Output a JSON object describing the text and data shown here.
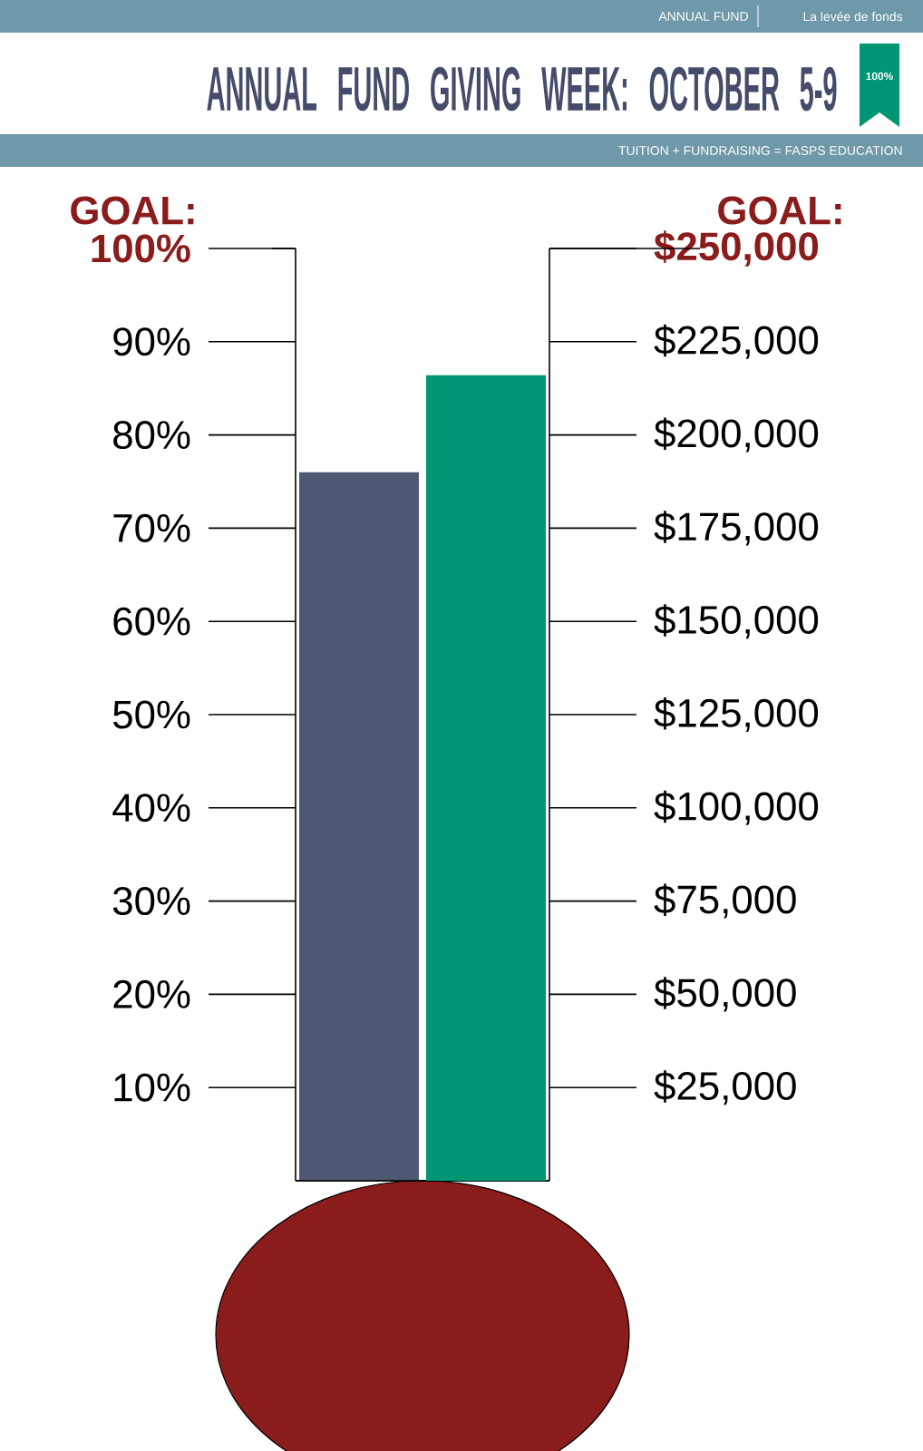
{
  "chart_data": {
    "type": "bar",
    "title": "ANNUAL FUND GIVING WEEK: OCTOBER 5-9",
    "subtitle": "TUITION + FUNDRAISING = FASPS EDUCATION",
    "annotations": [
      "ANNUAL FUND",
      "La levée de fonds",
      "100%"
    ],
    "categories": [
      null,
      null
    ],
    "series": [
      {
        "color": "#4f5873",
        "values": [
          76,
          null
        ]
      },
      {
        "color": "#009674",
        "values": [
          null,
          216000
        ],
        "axis": "y2"
      }
    ],
    "ylim": [
      0,
      100
    ],
    "yticks": [
      {
        "value": 10,
        "label": "10%"
      },
      {
        "value": 20,
        "label": "20%"
      },
      {
        "value": 30,
        "label": "30%"
      },
      {
        "value": 40,
        "label": "40%"
      },
      {
        "value": 50,
        "label": "50%"
      },
      {
        "value": 60,
        "label": "60%"
      },
      {
        "value": 70,
        "label": "70%"
      },
      {
        "value": 80,
        "label": "80%"
      },
      {
        "value": 90,
        "label": "90%"
      },
      {
        "value": 100,
        "label": "100%"
      }
    ],
    "y2lim": [
      0,
      250000
    ],
    "y2ticks": [
      {
        "value": 25000,
        "label": "$25,000"
      },
      {
        "value": 50000,
        "label": "$50,000"
      },
      {
        "value": 75000,
        "label": "$75,000"
      },
      {
        "value": 100000,
        "label": "$100,000"
      },
      {
        "value": 125000,
        "label": "$125,000"
      },
      {
        "value": 150000,
        "label": "$150,000"
      },
      {
        "value": 175000,
        "label": "$175,000"
      },
      {
        "value": 200000,
        "label": "$200,000"
      },
      {
        "value": 225000,
        "label": "$225,000"
      },
      {
        "value": 250000,
        "label": "$250,000"
      }
    ],
    "ref_lines": [
      {
        "axis": "y",
        "value": 100,
        "label": "GOAL:"
      },
      {
        "axis": "y2",
        "value": 250000,
        "label": "GOAL:"
      }
    ]
  }
}
